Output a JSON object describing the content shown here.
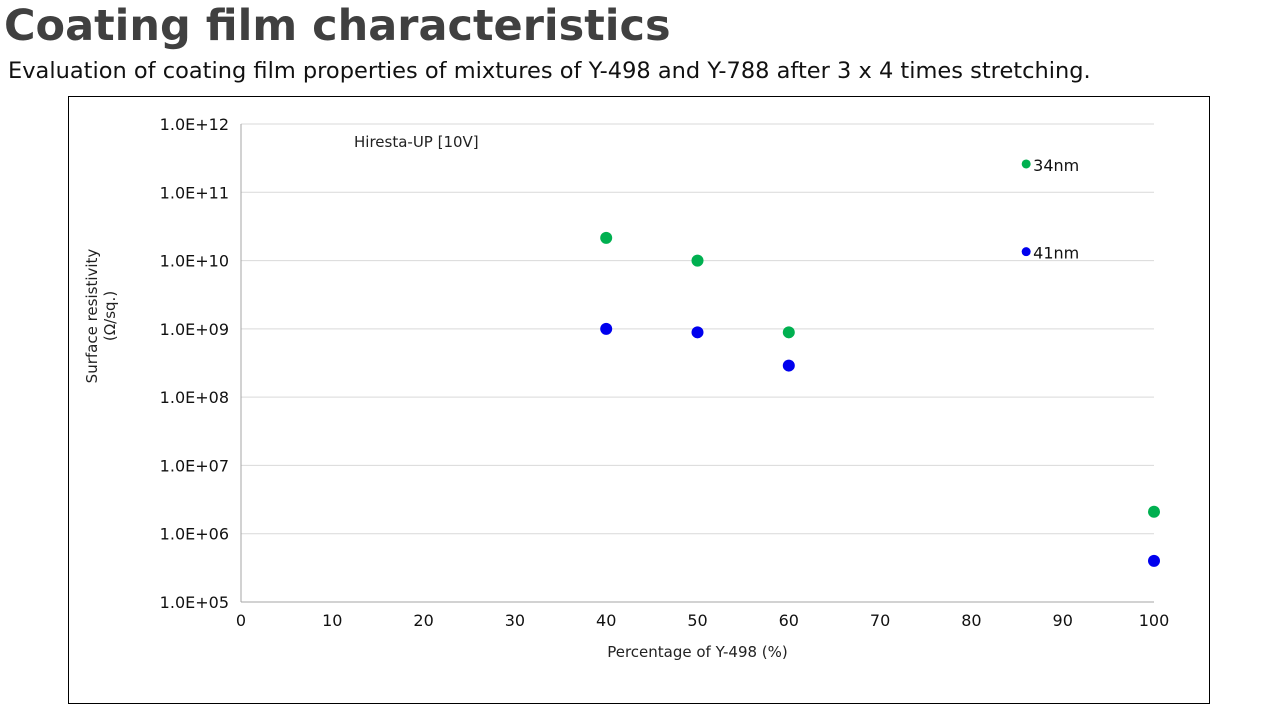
{
  "page": {
    "title": "Coating film characteristics",
    "subtitle": "Evaluation of coating film properties of mixtures of Y-498 and Y-788 after 3 x 4 times stretching."
  },
  "chart_data": {
    "type": "scatter",
    "title": "",
    "xlabel": "Percentage of Y-498 (%)",
    "ylabel": "Surface resistivity",
    "ylabel_unit": "(Ω/sq.)",
    "annotation": "Hiresta-UP [10V]",
    "xlim": [
      0,
      100
    ],
    "x_ticks": [
      0,
      10,
      20,
      30,
      40,
      50,
      60,
      70,
      80,
      90,
      100
    ],
    "y_scale": "log",
    "ylim": [
      100000,
      1000000000000
    ],
    "y_ticks": [
      100000,
      1000000,
      10000000,
      100000000,
      1000000000,
      10000000000,
      100000000000,
      1000000000000
    ],
    "y_tick_labels": [
      "1.0E+05",
      "1.0E+06",
      "1.0E+07",
      "1.0E+08",
      "1.0E+09",
      "1.0E+10",
      "1.0E+11",
      "1.0E+12"
    ],
    "grid": "horizontal",
    "legend": "none",
    "series": [
      {
        "color": "#00b050",
        "points": [
          {
            "x": 40,
            "y": 21500000000
          },
          {
            "x": 50,
            "y": 10000000000
          },
          {
            "x": 60,
            "y": 890000000
          },
          {
            "x": 100,
            "y": 2100000
          }
        ]
      },
      {
        "color": "#0000ee",
        "points": [
          {
            "x": 40,
            "y": 1000000000
          },
          {
            "x": 50,
            "y": 890000000
          },
          {
            "x": 60,
            "y": 290000000
          },
          {
            "x": 100,
            "y": 400000
          }
        ]
      }
    ],
    "legend_markers": [
      {
        "label": "34nm",
        "color": "#00b050",
        "x": 86,
        "y": 260000000000
      },
      {
        "label": "41nm",
        "color": "#0000ee",
        "x": 86,
        "y": 13500000000
      }
    ]
  }
}
